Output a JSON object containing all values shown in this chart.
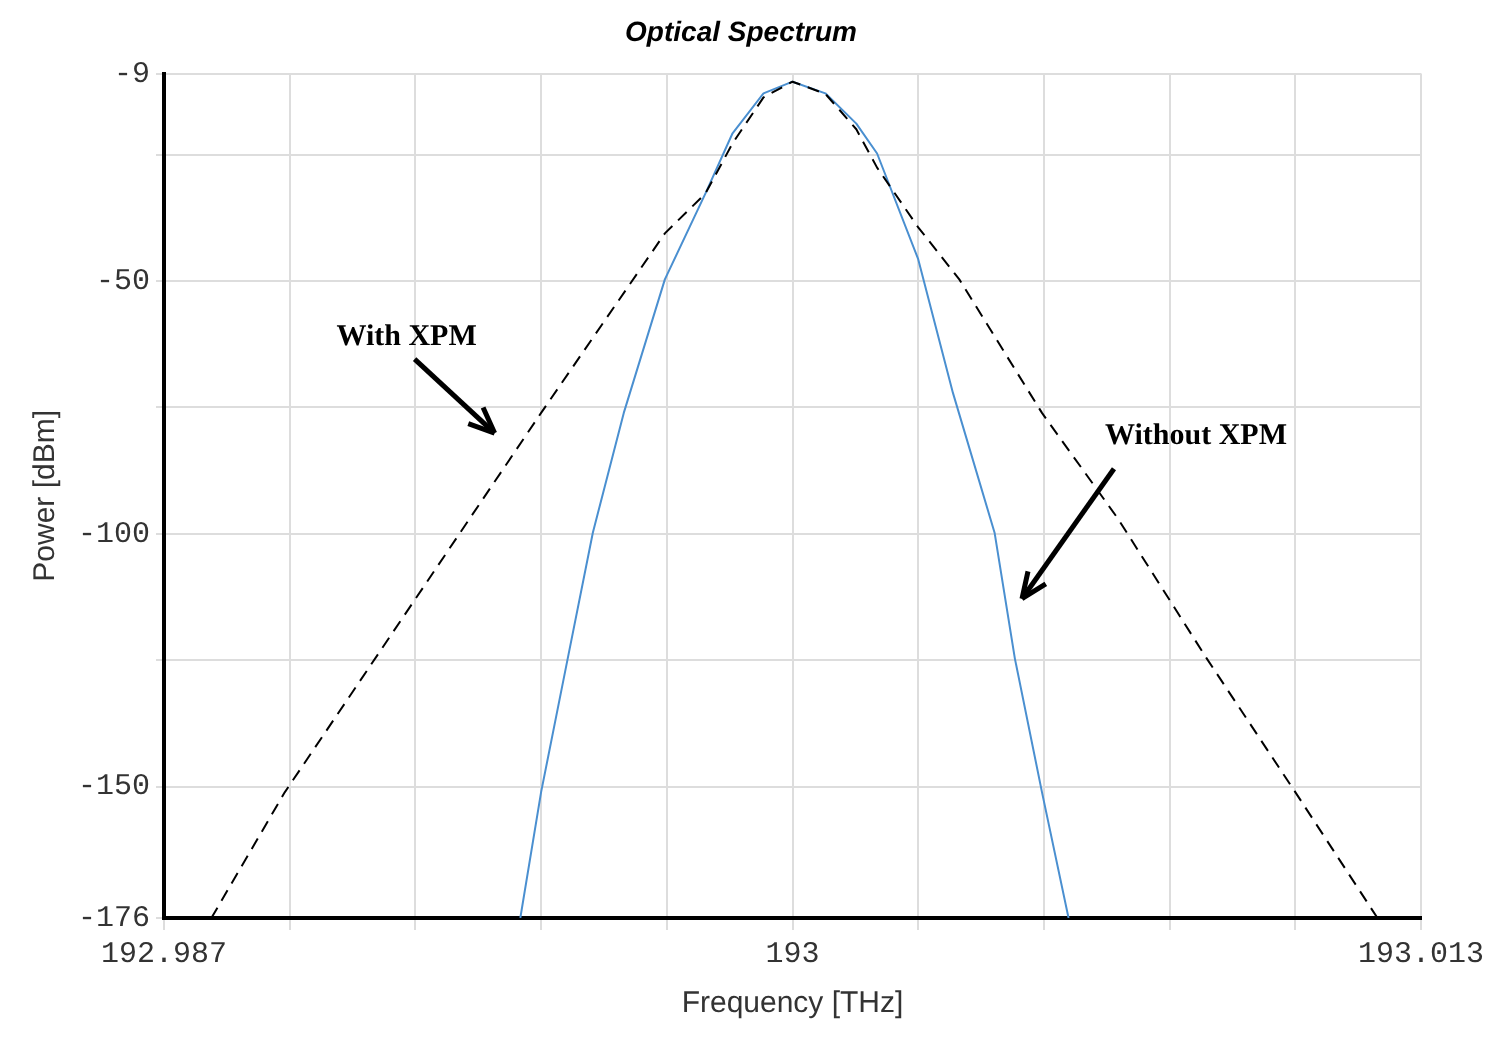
{
  "chart_data": {
    "type": "line",
    "title": "Optical Spectrum",
    "xlabel": "Frequency [THz]",
    "ylabel": "Power [dBm]",
    "xlim": [
      192.987,
      193.013
    ],
    "ylim": [
      -176,
      -9
    ],
    "xticks": [
      192.987,
      {
        "value": 192.9896,
        "label": null
      },
      {
        "value": 192.9922,
        "label": null
      },
      {
        "value": 192.9948,
        "label": null
      },
      {
        "value": 192.9974,
        "label": null
      },
      193,
      {
        "value": 193.0026,
        "label": null
      },
      {
        "value": 193.0052,
        "label": null
      },
      {
        "value": 193.0078,
        "label": null
      },
      {
        "value": 193.0104,
        "label": null
      },
      193.013
    ],
    "yticks": [
      -176,
      -150,
      {
        "value": -125,
        "label": null
      },
      -100,
      {
        "value": -75,
        "label": null
      },
      -50,
      {
        "value": -25,
        "label": null
      },
      -9
    ],
    "grid": true,
    "marker": "none",
    "series": [
      {
        "type": "line",
        "color": "#000000",
        "line_style": "dashed",
        "x": [
          192.98798,
          192.9895,
          192.9948,
          192.99736,
          192.9982,
          192.99876,
          192.9994,
          193,
          193.00068,
          193.00132,
          193.00175,
          193.0026,
          193.00345,
          193.00516,
          193.00673,
          193.00857,
          193.0104,
          193.0121
        ],
        "values": [
          -176,
          -151.1,
          -76.1,
          -40.6,
          -32.7,
          -22.8,
          -13.7,
          -10.6,
          -13,
          -20,
          -27.6,
          -39.4,
          -49.7,
          -76.1,
          -97,
          -124.7,
          -151.1,
          -176
        ]
      },
      {
        "type": "line",
        "color": "#4a8fd0",
        "line_style": "solid",
        "x": [
          192.99437,
          192.9948,
          192.99535,
          192.99587,
          192.99651,
          192.99736,
          192.9982,
          192.99876,
          192.9994,
          193,
          193.00068,
          193.00132,
          193.00175,
          193.0026,
          193.00332,
          193.00418,
          193.0046,
          193.00516,
          193.00571
        ],
        "values": [
          -176,
          -151.1,
          -124.7,
          -99.8,
          -76.1,
          -49.7,
          -32.7,
          -20.8,
          -12.9,
          -10.6,
          -12.9,
          -18.9,
          -24.8,
          -45.7,
          -72.2,
          -99.8,
          -124.7,
          -151.1,
          -176
        ]
      }
    ],
    "annotations": [
      "With XPM",
      "Without XPM"
    ]
  }
}
